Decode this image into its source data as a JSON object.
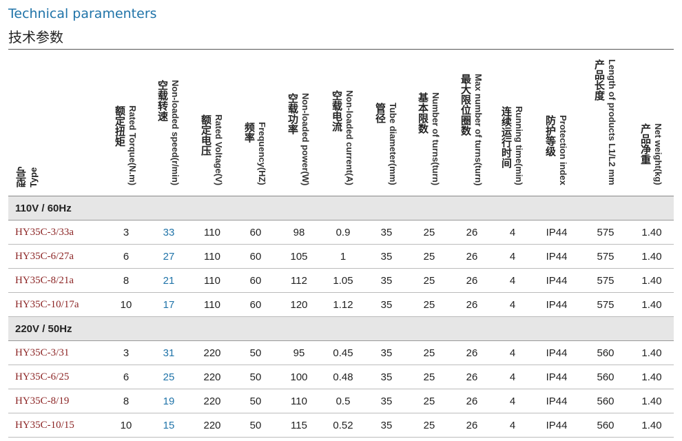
{
  "title": {
    "en": "Technical paramenters",
    "cn": "技术参数"
  },
  "headers": [
    {
      "cn": "型号",
      "en": "Type"
    },
    {
      "cn": "额定扭矩",
      "en": "Rated Torque(N.m)"
    },
    {
      "cn": "空载转速",
      "en": "Non-loaded speed(r/min)"
    },
    {
      "cn": "额定电压",
      "en": "Rated Voltage(V)"
    },
    {
      "cn": "频率",
      "en": "Frequency(HZ)"
    },
    {
      "cn": "空载功率",
      "en": "Non-loaded power(W)"
    },
    {
      "cn": "空载电流",
      "en": "Non-loaded current(A)"
    },
    {
      "cn": "管径",
      "en": "Tube diameter(mm)"
    },
    {
      "cn": "基本限数",
      "en": "Number of turns(turn)"
    },
    {
      "cn": "最大限位圈数",
      "en": "Max number of turns(turn)"
    },
    {
      "cn": "连续运行时间",
      "en": "Running time(min)"
    },
    {
      "cn": "防护等级",
      "en": "Protection index"
    },
    {
      "cn": "产品长度",
      "en": "Length of products L1/L2 mm"
    },
    {
      "cn": "产品净重",
      "en": "Net weight(kg)"
    }
  ],
  "groups": [
    {
      "label": "110V / 60Hz",
      "rows": [
        [
          "HY35C-3/33a",
          "3",
          "33",
          "110",
          "60",
          "98",
          "0.9",
          "35",
          "25",
          "26",
          "4",
          "IP44",
          "575",
          "1.40"
        ],
        [
          "HY35C-6/27a",
          "6",
          "27",
          "110",
          "60",
          "105",
          "1",
          "35",
          "25",
          "26",
          "4",
          "IP44",
          "575",
          "1.40"
        ],
        [
          "HY35C-8/21a",
          "8",
          "21",
          "110",
          "60",
          "112",
          "1.05",
          "35",
          "25",
          "26",
          "4",
          "IP44",
          "575",
          "1.40"
        ],
        [
          "HY35C-10/17a",
          "10",
          "17",
          "110",
          "60",
          "120",
          "1.12",
          "35",
          "25",
          "26",
          "4",
          "IP44",
          "575",
          "1.40"
        ]
      ]
    },
    {
      "label": "220V / 50Hz",
      "rows": [
        [
          "HY35C-3/31",
          "3",
          "31",
          "220",
          "50",
          "95",
          "0.45",
          "35",
          "25",
          "26",
          "4",
          "IP44",
          "560",
          "1.40"
        ],
        [
          "HY35C-6/25",
          "6",
          "25",
          "220",
          "50",
          "100",
          "0.48",
          "35",
          "25",
          "26",
          "4",
          "IP44",
          "560",
          "1.40"
        ],
        [
          "HY35C-8/19",
          "8",
          "19",
          "220",
          "50",
          "110",
          "0.5",
          "35",
          "25",
          "26",
          "4",
          "IP44",
          "560",
          "1.40"
        ],
        [
          "HY35C-10/15",
          "10",
          "15",
          "220",
          "50",
          "115",
          "0.52",
          "35",
          "25",
          "26",
          "4",
          "IP44",
          "560",
          "1.40"
        ]
      ]
    }
  ],
  "colors": {
    "title_blue": "#1f73a8",
    "type_red": "#8b2323",
    "speed_blue": "#1f73a8",
    "group_bg": "#e6e6e6"
  }
}
